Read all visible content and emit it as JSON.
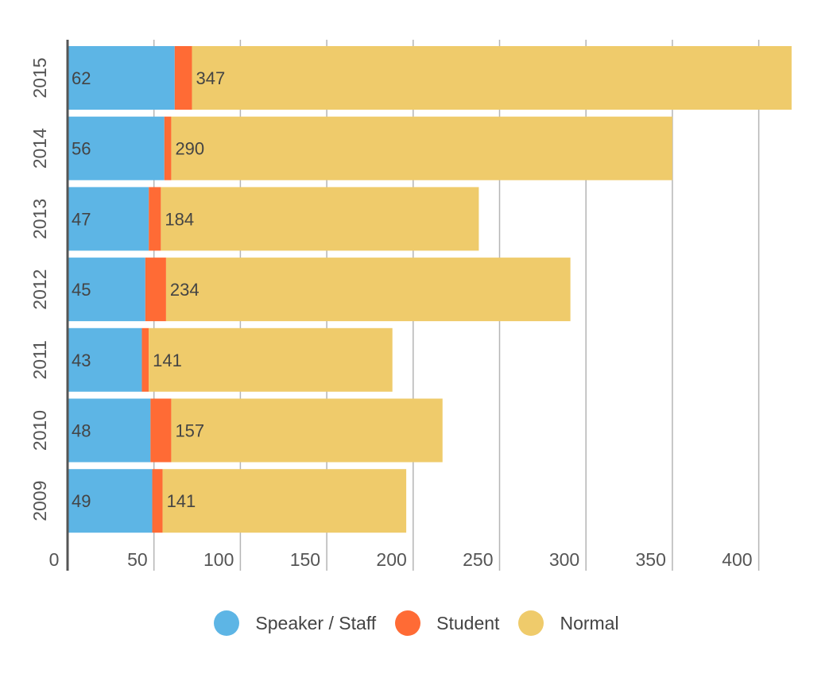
{
  "chart_data": {
    "type": "bar",
    "orientation": "horizontal",
    "stacked": true,
    "title": "",
    "xlabel": "",
    "ylabel": "",
    "categories": [
      "2015",
      "2014",
      "2013",
      "2012",
      "2011",
      "2010",
      "2009"
    ],
    "series": [
      {
        "name": "Speaker / Staff",
        "color": "#5DB5E5",
        "values": [
          62,
          56,
          47,
          45,
          43,
          48,
          49
        ]
      },
      {
        "name": "Student",
        "color": "#FF6B35",
        "values": [
          10,
          4,
          7,
          12,
          4,
          12,
          6
        ]
      },
      {
        "name": "Normal",
        "color": "#EFCB6B",
        "values": [
          347,
          290,
          184,
          234,
          141,
          157,
          141
        ]
      }
    ],
    "data_labels": {
      "Speaker / Staff": [
        "62",
        "56",
        "47",
        "45",
        "43",
        "48",
        "49"
      ],
      "Normal": [
        "347",
        "290",
        "184",
        "234",
        "141",
        "157",
        "141"
      ]
    },
    "xticks": [
      0,
      50,
      100,
      150,
      200,
      250,
      300,
      350,
      400
    ],
    "xlim": [
      0,
      425
    ],
    "grid": true,
    "legend_position": "bottom-center"
  }
}
